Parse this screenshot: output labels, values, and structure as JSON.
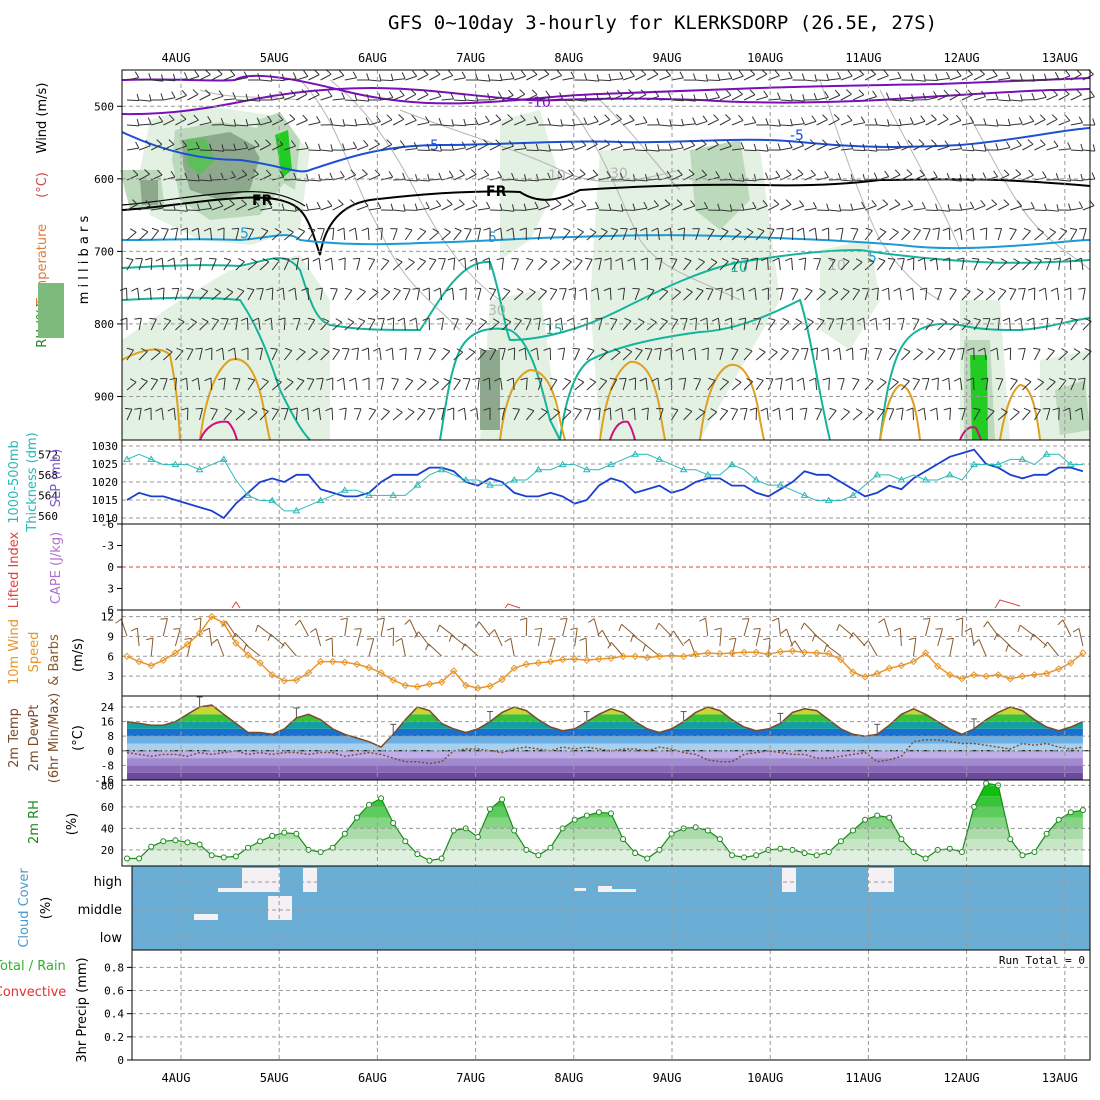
{
  "title": "GFS 0~10day 3-hourly for KLERKSDORP (26.5E, 27S)",
  "dates": [
    "4AUG",
    "5AUG",
    "6AUG",
    "7AUG",
    "8AUG",
    "9AUG",
    "10AUG",
    "11AUG",
    "12AUG",
    "13AUG"
  ],
  "colors": {
    "temp_purple": "#7a10b8",
    "temp_blue": "#1a4fd6",
    "temp_lightblue": "#1a9ad8",
    "temp_teal": "#14b49a",
    "temp_orange": "#e0a020",
    "temp_magenta": "#d0107a",
    "freezing": "#000000",
    "rh_dark": "#8ea88e",
    "rh_mid": "#bcd9bc",
    "rh_light": "#e3f1e3",
    "rh_bright": "#22cc22",
    "slp": "#1a3fd0",
    "thickness": "#2ab8b8",
    "lifted_index": "#e04040",
    "wind10m": "#e8952a",
    "barb": "#8a5a2a",
    "temp2m": "#7a4a2a",
    "dewpt": "#7a4a2a",
    "rh2m": "#1a8a1a",
    "cloud": "#6aaed6",
    "precip_total": "#30b030",
    "precip_conv": "#e03030"
  },
  "chart_data": [
    {
      "type": "heatmap",
      "name": "upper-air",
      "ylabel": "m i l l i b a r s",
      "left_labels": [
        "RH (%)",
        "Temperature",
        "(°C)",
        "Wind (m/s)"
      ],
      "y_ticks": [
        500,
        600,
        700,
        800,
        900
      ],
      "ylim": [
        1050,
        450
      ],
      "contour_labels": [
        "-10",
        "-5",
        "-5",
        "FR",
        "FR",
        "5",
        "5",
        "5",
        "10",
        "15",
        "10",
        "10",
        "30",
        "30"
      ]
    },
    {
      "type": "line",
      "name": "slp-thickness",
      "left_labels": [
        "1000-500mb",
        "Thickness (dm)",
        "SLP (mb)"
      ],
      "thickness_ticks": [
        560,
        564,
        568,
        572
      ],
      "slp_ticks": [
        1010,
        1015,
        1020,
        1025,
        1030
      ],
      "x": [
        0,
        1,
        2,
        3,
        4,
        5,
        6,
        7,
        8,
        9,
        10,
        11,
        12,
        13,
        14,
        15,
        16,
        17,
        18,
        19,
        20,
        21,
        22,
        23,
        24,
        25,
        26,
        27,
        28,
        29,
        30,
        31,
        32,
        33,
        34,
        35,
        36,
        37,
        38,
        39,
        40,
        41,
        42,
        43,
        44,
        45,
        46,
        47,
        48,
        49,
        50,
        51,
        52,
        53,
        54,
        55,
        56,
        57,
        58,
        59,
        60,
        61,
        62,
        63,
        64,
        65,
        66,
        67,
        68,
        69,
        70,
        71,
        72,
        73,
        74,
        75,
        76,
        77,
        78,
        79
      ],
      "series": [
        {
          "name": "SLP (mb)",
          "values": [
            1015,
            1017,
            1016,
            1016,
            1015,
            1014,
            1013,
            1012,
            1010,
            1014,
            1017,
            1020,
            1021,
            1020,
            1022,
            1022,
            1018,
            1017,
            1016,
            1016,
            1017,
            1020,
            1022,
            1022,
            1022,
            1024,
            1024,
            1023,
            1020,
            1019,
            1021,
            1020,
            1017,
            1016,
            1016,
            1017,
            1016,
            1014,
            1015,
            1019,
            1021,
            1020,
            1017,
            1018,
            1019,
            1017,
            1018,
            1020,
            1021,
            1021,
            1019,
            1019,
            1017,
            1016,
            1018,
            1020,
            1023,
            1022,
            1022,
            1020,
            1018,
            1016,
            1017,
            1019,
            1018,
            1021,
            1023,
            1025,
            1027,
            1028,
            1029,
            1025,
            1024,
            1022,
            1021,
            1022,
            1022,
            1024,
            1024,
            1023
          ]
        },
        {
          "name": "1000-500mb Thickness (dm)",
          "values": [
            571,
            572,
            571,
            570,
            570,
            570,
            569,
            570,
            571,
            567,
            564,
            563,
            563,
            561,
            561,
            562,
            563,
            564,
            565,
            565,
            564,
            564,
            564,
            564,
            566,
            568,
            569,
            568,
            567,
            567,
            566,
            566,
            567,
            567,
            569,
            569,
            570,
            570,
            569,
            569,
            570,
            571,
            572,
            572,
            571,
            570,
            569,
            569,
            568,
            568,
            570,
            569,
            567,
            566,
            566,
            565,
            564,
            563,
            563,
            563,
            564,
            566,
            568,
            568,
            567,
            568,
            567,
            567,
            568,
            567,
            570,
            570,
            570,
            571,
            571,
            570,
            572,
            572,
            570,
            570
          ]
        }
      ]
    },
    {
      "type": "line",
      "name": "lifted-index-cape",
      "left_labels": [
        "Lifted Index",
        "CAPE (J/kg)"
      ],
      "y_ticks": [
        6,
        3,
        0,
        -3,
        -6
      ],
      "ylim": [
        6,
        -6
      ],
      "series": [
        {
          "name": "Lifted Index",
          "values": [
            0
          ]
        }
      ]
    },
    {
      "type": "line",
      "name": "wind10m",
      "left_labels": [
        "10m Wind",
        "Speed",
        "& Barbs",
        "(m/s)"
      ],
      "y_ticks": [
        3,
        6,
        9,
        12
      ],
      "ylim": [
        0,
        13
      ],
      "x": [
        0,
        1,
        2,
        3,
        4,
        5,
        6,
        7,
        8,
        9,
        10,
        11,
        12,
        13,
        14,
        15,
        16,
        17,
        18,
        19,
        20,
        21,
        22,
        23,
        24,
        25,
        26,
        27,
        28,
        29,
        30,
        31,
        32,
        33,
        34,
        35,
        36,
        37,
        38,
        39,
        40,
        41,
        42,
        43,
        44,
        45,
        46,
        47,
        48,
        49,
        50,
        51,
        52,
        53,
        54,
        55,
        56,
        57,
        58,
        59,
        60,
        61,
        62,
        63,
        64,
        65,
        66,
        67,
        68,
        69,
        70,
        71,
        72,
        73,
        74,
        75,
        76,
        77,
        78,
        79
      ],
      "series": [
        {
          "name": "Speed",
          "values": [
            6,
            5.2,
            4.6,
            5.4,
            6.5,
            7.8,
            9.5,
            12,
            11,
            8,
            6.2,
            5,
            3.2,
            2.3,
            2.4,
            3.5,
            5.2,
            5.2,
            5.1,
            4.8,
            4.3,
            3.5,
            2.4,
            1.6,
            1.4,
            1.8,
            2.1,
            3.8,
            1.6,
            1.2,
            1.5,
            2.5,
            4.2,
            4.8,
            5,
            5.2,
            5.5,
            5.6,
            5.4,
            5.6,
            5.7,
            6,
            6,
            5.8,
            6,
            6.1,
            6,
            6.3,
            6.5,
            6.4,
            6.5,
            6.6,
            6.6,
            6.3,
            6.7,
            6.8,
            6.6,
            6.5,
            6.4,
            5.5,
            3.6,
            2.9,
            3.4,
            4.2,
            4.6,
            5.2,
            6.5,
            4.5,
            3.2,
            2.6,
            3.2,
            3,
            3.2,
            2.6,
            3,
            3.2,
            3.4,
            4.1,
            5,
            6.5
          ]
        }
      ]
    },
    {
      "type": "area",
      "name": "temp2m",
      "left_labels": [
        "2m Temp",
        "2m DewPt",
        "(6hr Min/Max)",
        "(°C)"
      ],
      "y_ticks": [
        24,
        16,
        8,
        0,
        -8,
        -16
      ],
      "ylim": [
        -16,
        30
      ],
      "x": [
        0,
        1,
        2,
        3,
        4,
        5,
        6,
        7,
        8,
        9,
        10,
        11,
        12,
        13,
        14,
        15,
        16,
        17,
        18,
        19,
        20,
        21,
        22,
        23,
        24,
        25,
        26,
        27,
        28,
        29,
        30,
        31,
        32,
        33,
        34,
        35,
        36,
        37,
        38,
        39,
        40,
        41,
        42,
        43,
        44,
        45,
        46,
        47,
        48,
        49,
        50,
        51,
        52,
        53,
        54,
        55,
        56,
        57,
        58,
        59,
        60,
        61,
        62,
        63,
        64,
        65,
        66,
        67,
        68,
        69,
        70,
        71,
        72,
        73,
        74,
        75,
        76,
        77,
        78,
        79
      ],
      "series": [
        {
          "name": "2m Temp",
          "values": [
            16,
            15,
            14,
            14,
            16,
            20,
            24,
            25,
            20,
            15,
            10,
            10,
            9,
            12,
            18,
            20,
            17,
            12,
            9,
            7,
            5,
            2,
            9,
            17,
            24,
            22,
            15,
            12,
            10,
            12,
            16,
            21,
            24,
            22,
            17,
            13,
            11,
            12,
            16,
            20,
            23,
            21,
            16,
            12,
            10,
            12,
            16,
            21,
            24,
            22,
            17,
            13,
            11,
            12,
            15,
            21,
            23,
            22,
            17,
            12,
            9,
            8,
            9,
            14,
            20,
            23,
            20,
            16,
            12,
            9,
            12,
            17,
            21,
            24,
            22,
            17,
            13,
            11,
            13,
            16
          ]
        },
        {
          "name": "2m DewPt",
          "values": [
            -1,
            -2,
            -3,
            -2,
            -2,
            -3,
            -1,
            -2,
            -1,
            0,
            -2,
            -1,
            -2,
            -1,
            -1,
            -2,
            -1,
            -1,
            -3,
            -2,
            -1,
            -2,
            -4,
            -6,
            -6,
            -7,
            -6,
            0,
            1,
            1,
            0,
            -1,
            1,
            2,
            1,
            0,
            2,
            1,
            2,
            1,
            0,
            1,
            1,
            0,
            2,
            1,
            -1,
            -2,
            -5,
            -6,
            -6,
            -2,
            -1,
            0,
            -1,
            -2,
            -2,
            -4,
            -4,
            -3,
            -2,
            -1,
            -6,
            -5,
            -3,
            5,
            6,
            6,
            5,
            4,
            4,
            3,
            2,
            1,
            4,
            3,
            4,
            2,
            1,
            2
          ]
        }
      ]
    },
    {
      "type": "area",
      "name": "rh2m",
      "left_labels": [
        "2m RH",
        "(%)"
      ],
      "y_ticks": [
        20,
        40,
        60,
        80
      ],
      "ylim": [
        5,
        85
      ],
      "x": [
        0,
        1,
        2,
        3,
        4,
        5,
        6,
        7,
        8,
        9,
        10,
        11,
        12,
        13,
        14,
        15,
        16,
        17,
        18,
        19,
        20,
        21,
        22,
        23,
        24,
        25,
        26,
        27,
        28,
        29,
        30,
        31,
        32,
        33,
        34,
        35,
        36,
        37,
        38,
        39,
        40,
        41,
        42,
        43,
        44,
        45,
        46,
        47,
        48,
        49,
        50,
        51,
        52,
        53,
        54,
        55,
        56,
        57,
        58,
        59,
        60,
        61,
        62,
        63,
        64,
        65,
        66,
        67,
        68,
        69,
        70,
        71,
        72,
        73,
        74,
        75,
        76,
        77,
        78,
        79
      ],
      "series": [
        {
          "name": "2m RH",
          "values": [
            12,
            12,
            23,
            28,
            29,
            27,
            25,
            15,
            13,
            14,
            22,
            28,
            33,
            36,
            35,
            20,
            18,
            22,
            35,
            50,
            62,
            68,
            45,
            28,
            16,
            10,
            12,
            38,
            40,
            32,
            58,
            67,
            38,
            20,
            15,
            22,
            40,
            48,
            52,
            55,
            54,
            30,
            17,
            12,
            20,
            35,
            40,
            41,
            38,
            30,
            15,
            13,
            15,
            20,
            21,
            20,
            17,
            15,
            18,
            28,
            38,
            48,
            52,
            50,
            30,
            18,
            12,
            20,
            21,
            18,
            60,
            82,
            80,
            30,
            15,
            18,
            35,
            48,
            55,
            57
          ]
        }
      ]
    },
    {
      "type": "heatmap",
      "name": "cloud-cover",
      "left_labels": [
        "Cloud Cover",
        "(%)"
      ],
      "levels": [
        "high",
        "middle",
        "low"
      ]
    },
    {
      "type": "bar",
      "name": "precip",
      "left_labels": [
        "Total / Rain",
        "Convective",
        "3hr Precip (mm)"
      ],
      "y_ticks": [
        0,
        0.2,
        0.4,
        0.6,
        0.8
      ],
      "ylim": [
        0,
        0.95
      ],
      "run_total": "Run Total = 0",
      "series": [
        {
          "name": "Total / Rain",
          "values": [
            0
          ]
        }
      ]
    }
  ]
}
